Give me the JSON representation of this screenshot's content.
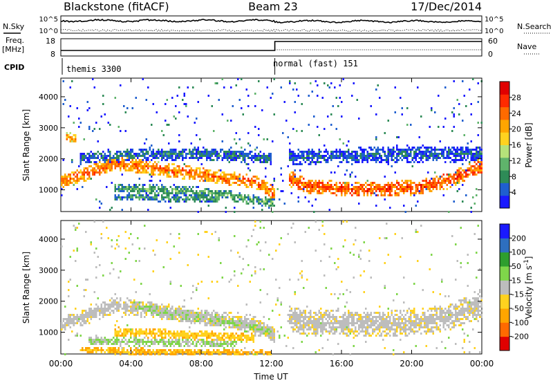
{
  "header": {
    "station": "Blackstone (fitACF)",
    "beam": "Beam 23",
    "date": "17/Dec/2014"
  },
  "status_panels": {
    "nsky_label": "N.Sky",
    "nsearch_label": "N.Search",
    "noise_ticks": [
      "10^5",
      "10^0"
    ],
    "freq_label": "Freq.",
    "freq_unit": "[MHz]",
    "freq_ticks": [
      "18",
      "8"
    ],
    "nave_label": "Nave",
    "nave_ticks": [
      "60",
      "0"
    ],
    "cpid_label": "CPID",
    "cpid_segments": [
      {
        "label": "themis 3300",
        "start_hour": 0.0,
        "end_hour": 12.2
      },
      {
        "label": "normal (fast) 151",
        "start_hour": 12.2,
        "end_hour": 24.0
      }
    ]
  },
  "x_axis": {
    "label": "Time UT",
    "ticks": [
      "00:00",
      "04:00",
      "08:00",
      "12:00",
      "16:00",
      "20:00",
      "00:00"
    ],
    "range_hours": [
      0,
      24
    ]
  },
  "colors": {
    "power_scale": [
      "#1a1aff",
      "#1f5fcf",
      "#2e8b57",
      "#5fb36b",
      "#b5e27a",
      "#ffd21f",
      "#ffa500",
      "#ff6a00",
      "#ff2a00",
      "#e00000"
    ],
    "velocity_scale": [
      "#e00000",
      "#ff6a00",
      "#ffa500",
      "#ffd21f",
      "#bdbdbd",
      "#7fd64a",
      "#2e9e2e",
      "#2e6fbf",
      "#1a1aff"
    ]
  },
  "chart_data": [
    {
      "type": "heatmap",
      "name": "power",
      "ylabel": "Slant Range [km]",
      "yticks": [
        "4000",
        "3000",
        "2000",
        "1000"
      ],
      "ylim": [
        300,
        4600
      ],
      "colorbar_label": "Power [dB]",
      "colorbar_ticks": [
        "28",
        "24",
        "20",
        "16",
        "12",
        "8",
        "4"
      ],
      "colorbar_range": [
        0,
        30
      ],
      "bands": [
        {
          "h": [
            0.0,
            1.2,
            3.0,
            5.0,
            7.0,
            9.0,
            11.0,
            12.2
          ],
          "r": [
            1280,
            1500,
            1900,
            1750,
            1600,
            1450,
            1300,
            900
          ],
          "w": 220,
          "v": 22
        },
        {
          "h": [
            13.0,
            14.0,
            16.0,
            18.0,
            20.0,
            22.0,
            24.0
          ],
          "r": [
            1400,
            1150,
            1050,
            1050,
            1100,
            1300,
            1850
          ],
          "w": 250,
          "v": 24
        },
        {
          "h": [
            0.2,
            0.8
          ],
          "r": [
            2750,
            2700
          ],
          "w": 150,
          "v": 20
        },
        {
          "h": [
            3.0,
            5.0,
            7.0,
            9.0,
            11.0,
            12.2
          ],
          "r": [
            1100,
            1050,
            1000,
            900,
            700,
            600
          ],
          "w": 160,
          "v": 10
        },
        {
          "h": [
            3.0,
            5.0,
            7.0,
            9.0
          ],
          "r": [
            800,
            780,
            760,
            720
          ],
          "w": 120,
          "v": 8
        },
        {
          "h": [
            1.0,
            4.0,
            8.0,
            12.0
          ],
          "r": [
            2050,
            2150,
            2200,
            2050
          ],
          "w": 200,
          "v": 6
        },
        {
          "h": [
            13.0,
            24.0
          ],
          "r": [
            2100,
            2200
          ],
          "w": 260,
          "v": 5
        }
      ]
    },
    {
      "type": "heatmap",
      "name": "velocity",
      "ylabel": "Slant Range [km]",
      "yticks": [
        "4000",
        "3000",
        "2000",
        "1000"
      ],
      "ylim": [
        300,
        4600
      ],
      "colorbar_label": "Velocity [m s^-1]",
      "colorbar_ticks": [
        "200",
        "100",
        "50",
        "15",
        "-15",
        "-50",
        "-100",
        "-200"
      ],
      "colorbar_range": [
        -250,
        250
      ],
      "bands": [
        {
          "h": [
            0.0,
            1.2,
            3.0,
            5.0,
            7.0,
            9.0,
            11.0,
            12.2
          ],
          "r": [
            1280,
            1500,
            1900,
            1750,
            1600,
            1450,
            1300,
            900
          ],
          "w": 260,
          "v": 0
        },
        {
          "h": [
            13.0,
            14.0,
            16.0,
            18.0,
            20.0,
            22.0,
            24.0
          ],
          "r": [
            1500,
            1350,
            1300,
            1300,
            1350,
            1500,
            1950
          ],
          "w": 420,
          "v": 0
        },
        {
          "h": [
            4.0,
            6.0,
            8.0,
            10.0,
            12.0
          ],
          "r": [
            1900,
            1650,
            1500,
            1300,
            1000
          ],
          "w": 180,
          "v": 30
        },
        {
          "h": [
            3.0,
            5.0,
            7.0,
            9.0,
            11.0
          ],
          "r": [
            1050,
            1000,
            950,
            900,
            850
          ],
          "w": 150,
          "v": -60
        },
        {
          "h": [
            1.5,
            4.0,
            7.0,
            10.0
          ],
          "r": [
            750,
            720,
            700,
            650
          ],
          "w": 140,
          "v": 40
        },
        {
          "h": [
            1.0,
            6.0,
            12.0
          ],
          "r": [
            450,
            400,
            350
          ],
          "w": 110,
          "v": -80
        }
      ]
    }
  ]
}
